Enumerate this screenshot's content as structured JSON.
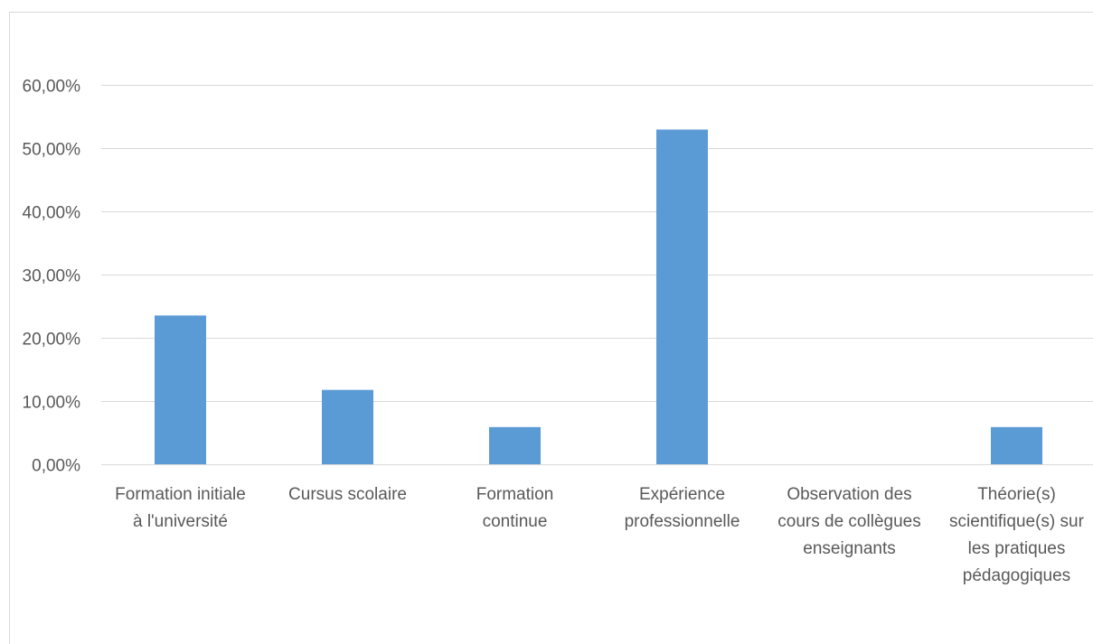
{
  "chart_data": {
    "type": "bar",
    "title": "",
    "xlabel": "",
    "ylabel": "",
    "categories": [
      [
        "Formation initiale",
        "à l'université"
      ],
      [
        "Cursus scolaire"
      ],
      [
        "Formation",
        "continue"
      ],
      [
        "Expérience",
        "professionnelle"
      ],
      [
        "Observation des",
        "cours de collègues",
        "enseignants"
      ],
      [
        "Théorie(s)",
        "scientifique(s) sur",
        "les pratiques",
        "pédagogiques"
      ]
    ],
    "values": [
      0.2353,
      0.1176,
      0.0588,
      0.5294,
      0.0,
      0.0588
    ],
    "ylim": [
      0,
      0.6
    ],
    "yticks": [
      0,
      0.1,
      0.2,
      0.3,
      0.4,
      0.5,
      0.6
    ],
    "ytick_labels": [
      "0,00%",
      "10,00%",
      "20,00%",
      "30,00%",
      "40,00%",
      "50,00%",
      "60,00%"
    ],
    "grid": true,
    "legend": "none",
    "colors": {
      "bar": "#5b9bd5",
      "grid": "#d9d9d9",
      "text": "#595959"
    }
  }
}
